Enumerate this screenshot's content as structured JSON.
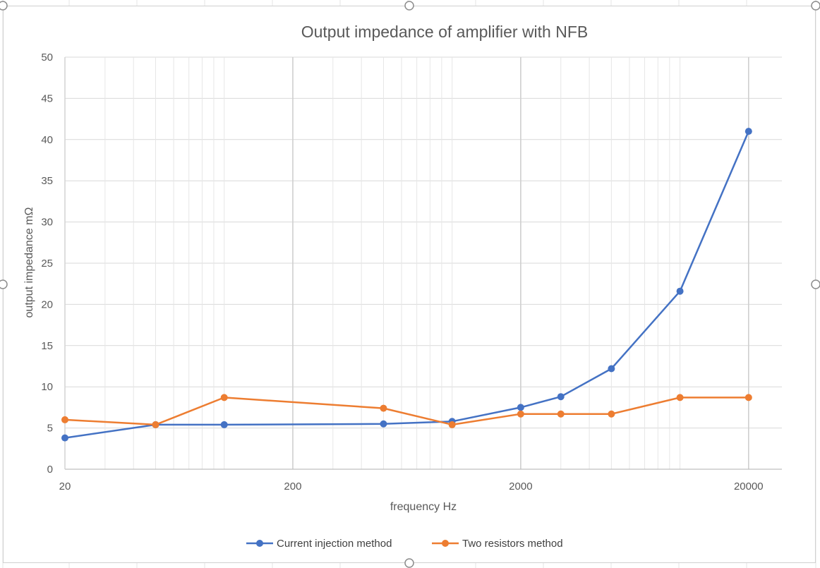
{
  "chart_data": {
    "type": "line",
    "title": "Output impedance of amplifier with NFB",
    "xlabel": "frequency Hz",
    "ylabel": "output impedance mΩ",
    "xscale": "log",
    "xlim": [
      20,
      28000
    ],
    "ylim": [
      0,
      50
    ],
    "ystep": 5,
    "xticks": [
      20,
      200,
      2000,
      20000
    ],
    "xtick_labels": [
      "20",
      "200",
      "2000",
      "20000"
    ],
    "ytick_labels": [
      "0",
      "5",
      "10",
      "15",
      "20",
      "25",
      "30",
      "35",
      "40",
      "45",
      "50"
    ],
    "grid": true,
    "legend_position": "bottom",
    "series": [
      {
        "name": "Current injection method",
        "color": "#4472c4",
        "x": [
          20,
          50,
          100,
          500,
          1000,
          2000,
          3000,
          5000,
          10000,
          20000
        ],
        "y": [
          3.8,
          5.4,
          5.4,
          5.5,
          5.8,
          7.5,
          8.8,
          12.2,
          21.6,
          41.0
        ]
      },
      {
        "name": "Two resistors method",
        "color": "#ed7d31",
        "x": [
          20,
          50,
          100,
          500,
          1000,
          2000,
          3000,
          5000,
          10000,
          20000
        ],
        "y": [
          6.0,
          5.4,
          8.7,
          7.4,
          5.4,
          6.7,
          6.7,
          6.7,
          8.7,
          8.7
        ]
      }
    ]
  }
}
